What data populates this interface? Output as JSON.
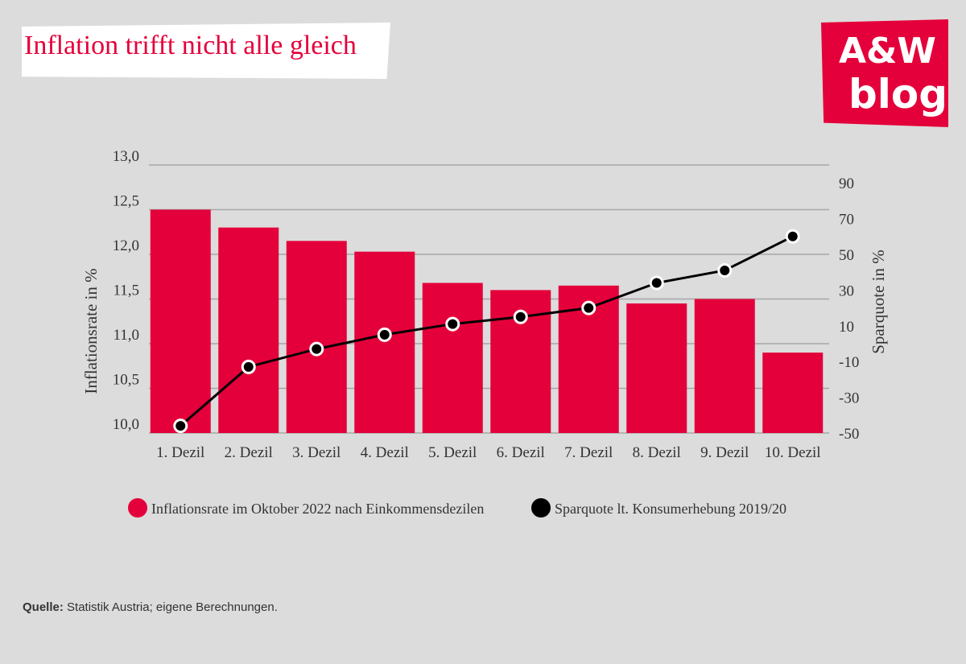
{
  "header": {
    "title": "Inflation trifft nicht alle gleich",
    "logo_line1": "A&W",
    "logo_line2": "blog"
  },
  "colors": {
    "bar": "#e4003a",
    "line": "#000000",
    "grid": "#a6a6a6",
    "text": "#333333"
  },
  "chart_data": {
    "type": "bar",
    "categories": [
      "1. Dezil",
      "2. Dezil",
      "3. Dezil",
      "4. Dezil",
      "5. Dezil",
      "6. Dezil",
      "7. Dezil",
      "8. Dezil",
      "9. Dezil",
      "10. Dezil"
    ],
    "series": [
      {
        "name": "Inflationsrate im Oktober 2022 nach Einkommensdezilen",
        "type": "bar",
        "axis": "left",
        "values": [
          12.5,
          12.3,
          12.15,
          12.03,
          11.68,
          11.6,
          11.65,
          11.45,
          11.5,
          10.9
        ]
      },
      {
        "name": "Sparquote lt. Konsumerhebung 2019/20",
        "type": "line",
        "axis": "right",
        "values": [
          -46,
          -13,
          -3,
          5,
          11,
          15,
          20,
          34,
          41,
          60
        ]
      }
    ],
    "y_left": {
      "label": "Inflationsrate in %",
      "ylim": [
        10.0,
        13.0
      ],
      "ticks": [
        10.0,
        10.5,
        11.0,
        11.5,
        12.0,
        12.5,
        13.0
      ],
      "tick_labels": [
        "10,0",
        "10,5",
        "11,0",
        "11,5",
        "12,0",
        "12,5",
        "13,0"
      ]
    },
    "y_right": {
      "label": "Sparquote in %",
      "ylim": [
        -50,
        100
      ],
      "ticks": [
        -50,
        -30,
        -10,
        10,
        30,
        50,
        70,
        90
      ],
      "tick_labels": [
        "-50",
        "-30",
        "-10",
        "10",
        "30",
        "50",
        "70",
        "90"
      ]
    },
    "grid": true,
    "legend": "bottom"
  },
  "source": {
    "label": "Quelle:",
    "text": " Statistik Austria; eigene Berechnungen."
  }
}
